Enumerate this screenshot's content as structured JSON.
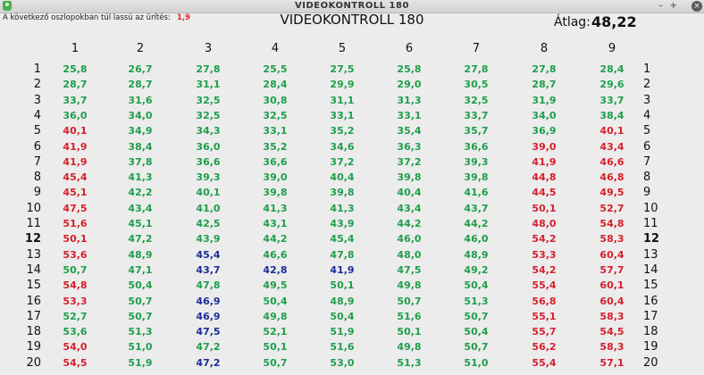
{
  "window": {
    "title": "VIDEOKONTROLL 180",
    "controls": [
      "–",
      "+",
      "×"
    ]
  },
  "notice": {
    "text": "A következő oszlopokban túl lassú az ürítés:",
    "value": "1,9"
  },
  "main_title": "VIDEOKONTROLL 180",
  "average": {
    "label": "Átlag:",
    "value": "48,22"
  },
  "columns": [
    "1",
    "2",
    "3",
    "4",
    "5",
    "6",
    "7",
    "8",
    "9"
  ],
  "highlighted_row": "12",
  "colors": {
    "ok": "#1e9f4a",
    "slow": "#d61f2b",
    "fast": "#1c2d99"
  },
  "rows": [
    {
      "label": "1",
      "cells": [
        {
          "v": "25,8",
          "c": "g"
        },
        {
          "v": "26,7",
          "c": "g"
        },
        {
          "v": "27,8",
          "c": "g"
        },
        {
          "v": "25,5",
          "c": "g"
        },
        {
          "v": "27,5",
          "c": "g"
        },
        {
          "v": "25,8",
          "c": "g"
        },
        {
          "v": "27,8",
          "c": "g"
        },
        {
          "v": "27,8",
          "c": "g"
        },
        {
          "v": "28,4",
          "c": "g"
        }
      ]
    },
    {
      "label": "2",
      "cells": [
        {
          "v": "28,7",
          "c": "g"
        },
        {
          "v": "28,7",
          "c": "g"
        },
        {
          "v": "31,1",
          "c": "g"
        },
        {
          "v": "28,4",
          "c": "g"
        },
        {
          "v": "29,9",
          "c": "g"
        },
        {
          "v": "29,0",
          "c": "g"
        },
        {
          "v": "30,5",
          "c": "g"
        },
        {
          "v": "28,7",
          "c": "g"
        },
        {
          "v": "29,6",
          "c": "g"
        }
      ]
    },
    {
      "label": "3",
      "cells": [
        {
          "v": "33,7",
          "c": "g"
        },
        {
          "v": "31,6",
          "c": "g"
        },
        {
          "v": "32,5",
          "c": "g"
        },
        {
          "v": "30,8",
          "c": "g"
        },
        {
          "v": "31,1",
          "c": "g"
        },
        {
          "v": "31,3",
          "c": "g"
        },
        {
          "v": "32,5",
          "c": "g"
        },
        {
          "v": "31,9",
          "c": "g"
        },
        {
          "v": "33,7",
          "c": "g"
        }
      ]
    },
    {
      "label": "4",
      "cells": [
        {
          "v": "36,0",
          "c": "g"
        },
        {
          "v": "34,0",
          "c": "g"
        },
        {
          "v": "32,5",
          "c": "g"
        },
        {
          "v": "32,5",
          "c": "g"
        },
        {
          "v": "33,1",
          "c": "g"
        },
        {
          "v": "33,1",
          "c": "g"
        },
        {
          "v": "33,7",
          "c": "g"
        },
        {
          "v": "34,0",
          "c": "g"
        },
        {
          "v": "38,4",
          "c": "g"
        }
      ]
    },
    {
      "label": "5",
      "cells": [
        {
          "v": "40,1",
          "c": "r"
        },
        {
          "v": "34,9",
          "c": "g"
        },
        {
          "v": "34,3",
          "c": "g"
        },
        {
          "v": "33,1",
          "c": "g"
        },
        {
          "v": "35,2",
          "c": "g"
        },
        {
          "v": "35,4",
          "c": "g"
        },
        {
          "v": "35,7",
          "c": "g"
        },
        {
          "v": "36,9",
          "c": "g"
        },
        {
          "v": "40,1",
          "c": "r"
        }
      ]
    },
    {
      "label": "6",
      "cells": [
        {
          "v": "41,9",
          "c": "r"
        },
        {
          "v": "38,4",
          "c": "g"
        },
        {
          "v": "36,0",
          "c": "g"
        },
        {
          "v": "35,2",
          "c": "g"
        },
        {
          "v": "34,6",
          "c": "g"
        },
        {
          "v": "36,3",
          "c": "g"
        },
        {
          "v": "36,6",
          "c": "g"
        },
        {
          "v": "39,0",
          "c": "r"
        },
        {
          "v": "43,4",
          "c": "r"
        }
      ]
    },
    {
      "label": "7",
      "cells": [
        {
          "v": "41,9",
          "c": "r"
        },
        {
          "v": "37,8",
          "c": "g"
        },
        {
          "v": "36,6",
          "c": "g"
        },
        {
          "v": "36,6",
          "c": "g"
        },
        {
          "v": "37,2",
          "c": "g"
        },
        {
          "v": "37,2",
          "c": "g"
        },
        {
          "v": "39,3",
          "c": "g"
        },
        {
          "v": "41,9",
          "c": "r"
        },
        {
          "v": "46,6",
          "c": "r"
        }
      ]
    },
    {
      "label": "8",
      "cells": [
        {
          "v": "45,4",
          "c": "r"
        },
        {
          "v": "41,3",
          "c": "g"
        },
        {
          "v": "39,3",
          "c": "g"
        },
        {
          "v": "39,0",
          "c": "g"
        },
        {
          "v": "40,4",
          "c": "g"
        },
        {
          "v": "39,8",
          "c": "g"
        },
        {
          "v": "39,8",
          "c": "g"
        },
        {
          "v": "44,8",
          "c": "r"
        },
        {
          "v": "46,8",
          "c": "r"
        }
      ]
    },
    {
      "label": "9",
      "cells": [
        {
          "v": "45,1",
          "c": "r"
        },
        {
          "v": "42,2",
          "c": "g"
        },
        {
          "v": "40,1",
          "c": "g"
        },
        {
          "v": "39,8",
          "c": "g"
        },
        {
          "v": "39,8",
          "c": "g"
        },
        {
          "v": "40,4",
          "c": "g"
        },
        {
          "v": "41,6",
          "c": "g"
        },
        {
          "v": "44,5",
          "c": "r"
        },
        {
          "v": "49,5",
          "c": "r"
        }
      ]
    },
    {
      "label": "10",
      "cells": [
        {
          "v": "47,5",
          "c": "r"
        },
        {
          "v": "43,4",
          "c": "g"
        },
        {
          "v": "41,0",
          "c": "g"
        },
        {
          "v": "41,3",
          "c": "g"
        },
        {
          "v": "41,3",
          "c": "g"
        },
        {
          "v": "43,4",
          "c": "g"
        },
        {
          "v": "43,7",
          "c": "g"
        },
        {
          "v": "50,1",
          "c": "r"
        },
        {
          "v": "52,7",
          "c": "r"
        }
      ]
    },
    {
      "label": "11",
      "cells": [
        {
          "v": "51,6",
          "c": "r"
        },
        {
          "v": "45,1",
          "c": "g"
        },
        {
          "v": "42,5",
          "c": "g"
        },
        {
          "v": "43,1",
          "c": "g"
        },
        {
          "v": "43,9",
          "c": "g"
        },
        {
          "v": "44,2",
          "c": "g"
        },
        {
          "v": "44,2",
          "c": "g"
        },
        {
          "v": "48,0",
          "c": "r"
        },
        {
          "v": "54,8",
          "c": "r"
        }
      ]
    },
    {
      "label": "12",
      "cells": [
        {
          "v": "50,1",
          "c": "r"
        },
        {
          "v": "47,2",
          "c": "g"
        },
        {
          "v": "43,9",
          "c": "g"
        },
        {
          "v": "44,2",
          "c": "g"
        },
        {
          "v": "45,4",
          "c": "g"
        },
        {
          "v": "46,0",
          "c": "g"
        },
        {
          "v": "46,0",
          "c": "g"
        },
        {
          "v": "54,2",
          "c": "r"
        },
        {
          "v": "58,3",
          "c": "r"
        }
      ]
    },
    {
      "label": "13",
      "cells": [
        {
          "v": "53,6",
          "c": "r"
        },
        {
          "v": "48,9",
          "c": "g"
        },
        {
          "v": "45,4",
          "c": "b"
        },
        {
          "v": "46,6",
          "c": "g"
        },
        {
          "v": "47,8",
          "c": "g"
        },
        {
          "v": "48,0",
          "c": "g"
        },
        {
          "v": "48,9",
          "c": "g"
        },
        {
          "v": "53,3",
          "c": "r"
        },
        {
          "v": "60,4",
          "c": "r"
        }
      ]
    },
    {
      "label": "14",
      "cells": [
        {
          "v": "50,7",
          "c": "g"
        },
        {
          "v": "47,1",
          "c": "g"
        },
        {
          "v": "43,7",
          "c": "b"
        },
        {
          "v": "42,8",
          "c": "b"
        },
        {
          "v": "41,9",
          "c": "b"
        },
        {
          "v": "47,5",
          "c": "g"
        },
        {
          "v": "49,2",
          "c": "g"
        },
        {
          "v": "54,2",
          "c": "r"
        },
        {
          "v": "57,7",
          "c": "r"
        }
      ]
    },
    {
      "label": "15",
      "cells": [
        {
          "v": "54,8",
          "c": "r"
        },
        {
          "v": "50,4",
          "c": "g"
        },
        {
          "v": "47,8",
          "c": "g"
        },
        {
          "v": "49,5",
          "c": "g"
        },
        {
          "v": "50,1",
          "c": "g"
        },
        {
          "v": "49,8",
          "c": "g"
        },
        {
          "v": "50,4",
          "c": "g"
        },
        {
          "v": "55,4",
          "c": "r"
        },
        {
          "v": "60,1",
          "c": "r"
        }
      ]
    },
    {
      "label": "16",
      "cells": [
        {
          "v": "53,3",
          "c": "r"
        },
        {
          "v": "50,7",
          "c": "g"
        },
        {
          "v": "46,9",
          "c": "b"
        },
        {
          "v": "50,4",
          "c": "g"
        },
        {
          "v": "48,9",
          "c": "g"
        },
        {
          "v": "50,7",
          "c": "g"
        },
        {
          "v": "51,3",
          "c": "g"
        },
        {
          "v": "56,8",
          "c": "r"
        },
        {
          "v": "60,4",
          "c": "r"
        }
      ]
    },
    {
      "label": "17",
      "cells": [
        {
          "v": "52,7",
          "c": "g"
        },
        {
          "v": "50,7",
          "c": "g"
        },
        {
          "v": "46,9",
          "c": "b"
        },
        {
          "v": "49,8",
          "c": "g"
        },
        {
          "v": "50,4",
          "c": "g"
        },
        {
          "v": "51,6",
          "c": "g"
        },
        {
          "v": "50,7",
          "c": "g"
        },
        {
          "v": "55,1",
          "c": "r"
        },
        {
          "v": "58,3",
          "c": "r"
        }
      ]
    },
    {
      "label": "18",
      "cells": [
        {
          "v": "53,6",
          "c": "g"
        },
        {
          "v": "51,3",
          "c": "g"
        },
        {
          "v": "47,5",
          "c": "b"
        },
        {
          "v": "52,1",
          "c": "g"
        },
        {
          "v": "51,9",
          "c": "g"
        },
        {
          "v": "50,1",
          "c": "g"
        },
        {
          "v": "50,4",
          "c": "g"
        },
        {
          "v": "55,7",
          "c": "r"
        },
        {
          "v": "54,5",
          "c": "r"
        }
      ]
    },
    {
      "label": "19",
      "cells": [
        {
          "v": "54,0",
          "c": "r"
        },
        {
          "v": "51,0",
          "c": "g"
        },
        {
          "v": "47,2",
          "c": "g"
        },
        {
          "v": "50,1",
          "c": "g"
        },
        {
          "v": "51,6",
          "c": "g"
        },
        {
          "v": "49,8",
          "c": "g"
        },
        {
          "v": "50,7",
          "c": "g"
        },
        {
          "v": "56,2",
          "c": "r"
        },
        {
          "v": "58,3",
          "c": "r"
        }
      ]
    },
    {
      "label": "20",
      "cells": [
        {
          "v": "54,5",
          "c": "r"
        },
        {
          "v": "51,9",
          "c": "g"
        },
        {
          "v": "47,2",
          "c": "b"
        },
        {
          "v": "50,7",
          "c": "g"
        },
        {
          "v": "53,0",
          "c": "g"
        },
        {
          "v": "51,3",
          "c": "g"
        },
        {
          "v": "51,0",
          "c": "g"
        },
        {
          "v": "55,4",
          "c": "r"
        },
        {
          "v": "57,1",
          "c": "r"
        }
      ]
    }
  ]
}
